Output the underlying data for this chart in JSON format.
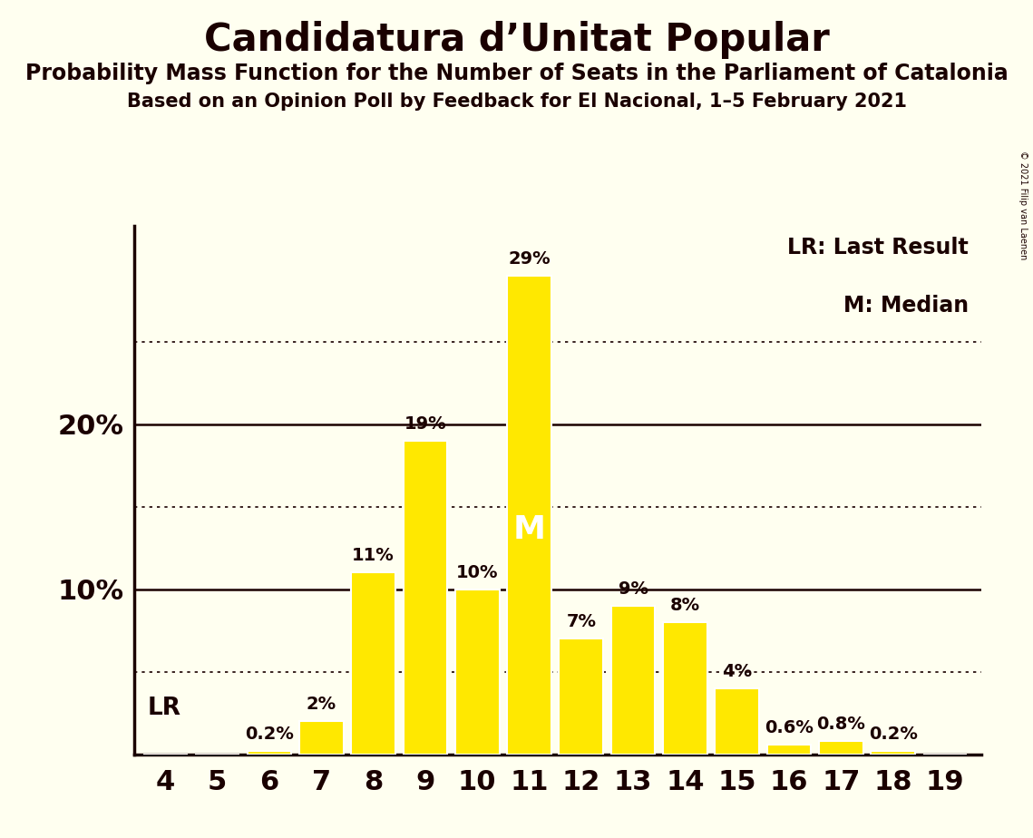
{
  "title": "Candidatura d’Unitat Popular",
  "subtitle1": "Probability Mass Function for the Number of Seats in the Parliament of Catalonia",
  "subtitle2": "Based on an Opinion Poll by Feedback for El Nacional, 1–5 February 2021",
  "copyright": "© 2021 Filip van Laenen",
  "seats": [
    4,
    5,
    6,
    7,
    8,
    9,
    10,
    11,
    12,
    13,
    14,
    15,
    16,
    17,
    18,
    19
  ],
  "probabilities": [
    0.0,
    0.0,
    0.2,
    2.0,
    11.0,
    19.0,
    10.0,
    29.0,
    7.0,
    9.0,
    8.0,
    4.0,
    0.6,
    0.8,
    0.2,
    0.0
  ],
  "bar_color": "#FFE800",
  "bar_edge_color": "#FFFFFF",
  "background_color": "#FFFFF0",
  "text_color": "#1a0000",
  "axis_color": "#1a0000",
  "lr_seat": 4,
  "median_seat": 11,
  "solid_line_levels": [
    10,
    20
  ],
  "dotted_line_levels": [
    5,
    15,
    25
  ],
  "legend_lr": "LR: Last Result",
  "legend_m": "M: Median",
  "lr_label": "LR",
  "median_label": "M",
  "ylim": [
    0,
    32
  ],
  "title_fontsize": 30,
  "subtitle1_fontsize": 17,
  "subtitle2_fontsize": 15,
  "ytick_fontsize": 22,
  "xtick_fontsize": 22,
  "bar_label_fontsize": 14,
  "legend_fontsize": 17,
  "lr_fontsize": 19,
  "median_fontsize": 26
}
